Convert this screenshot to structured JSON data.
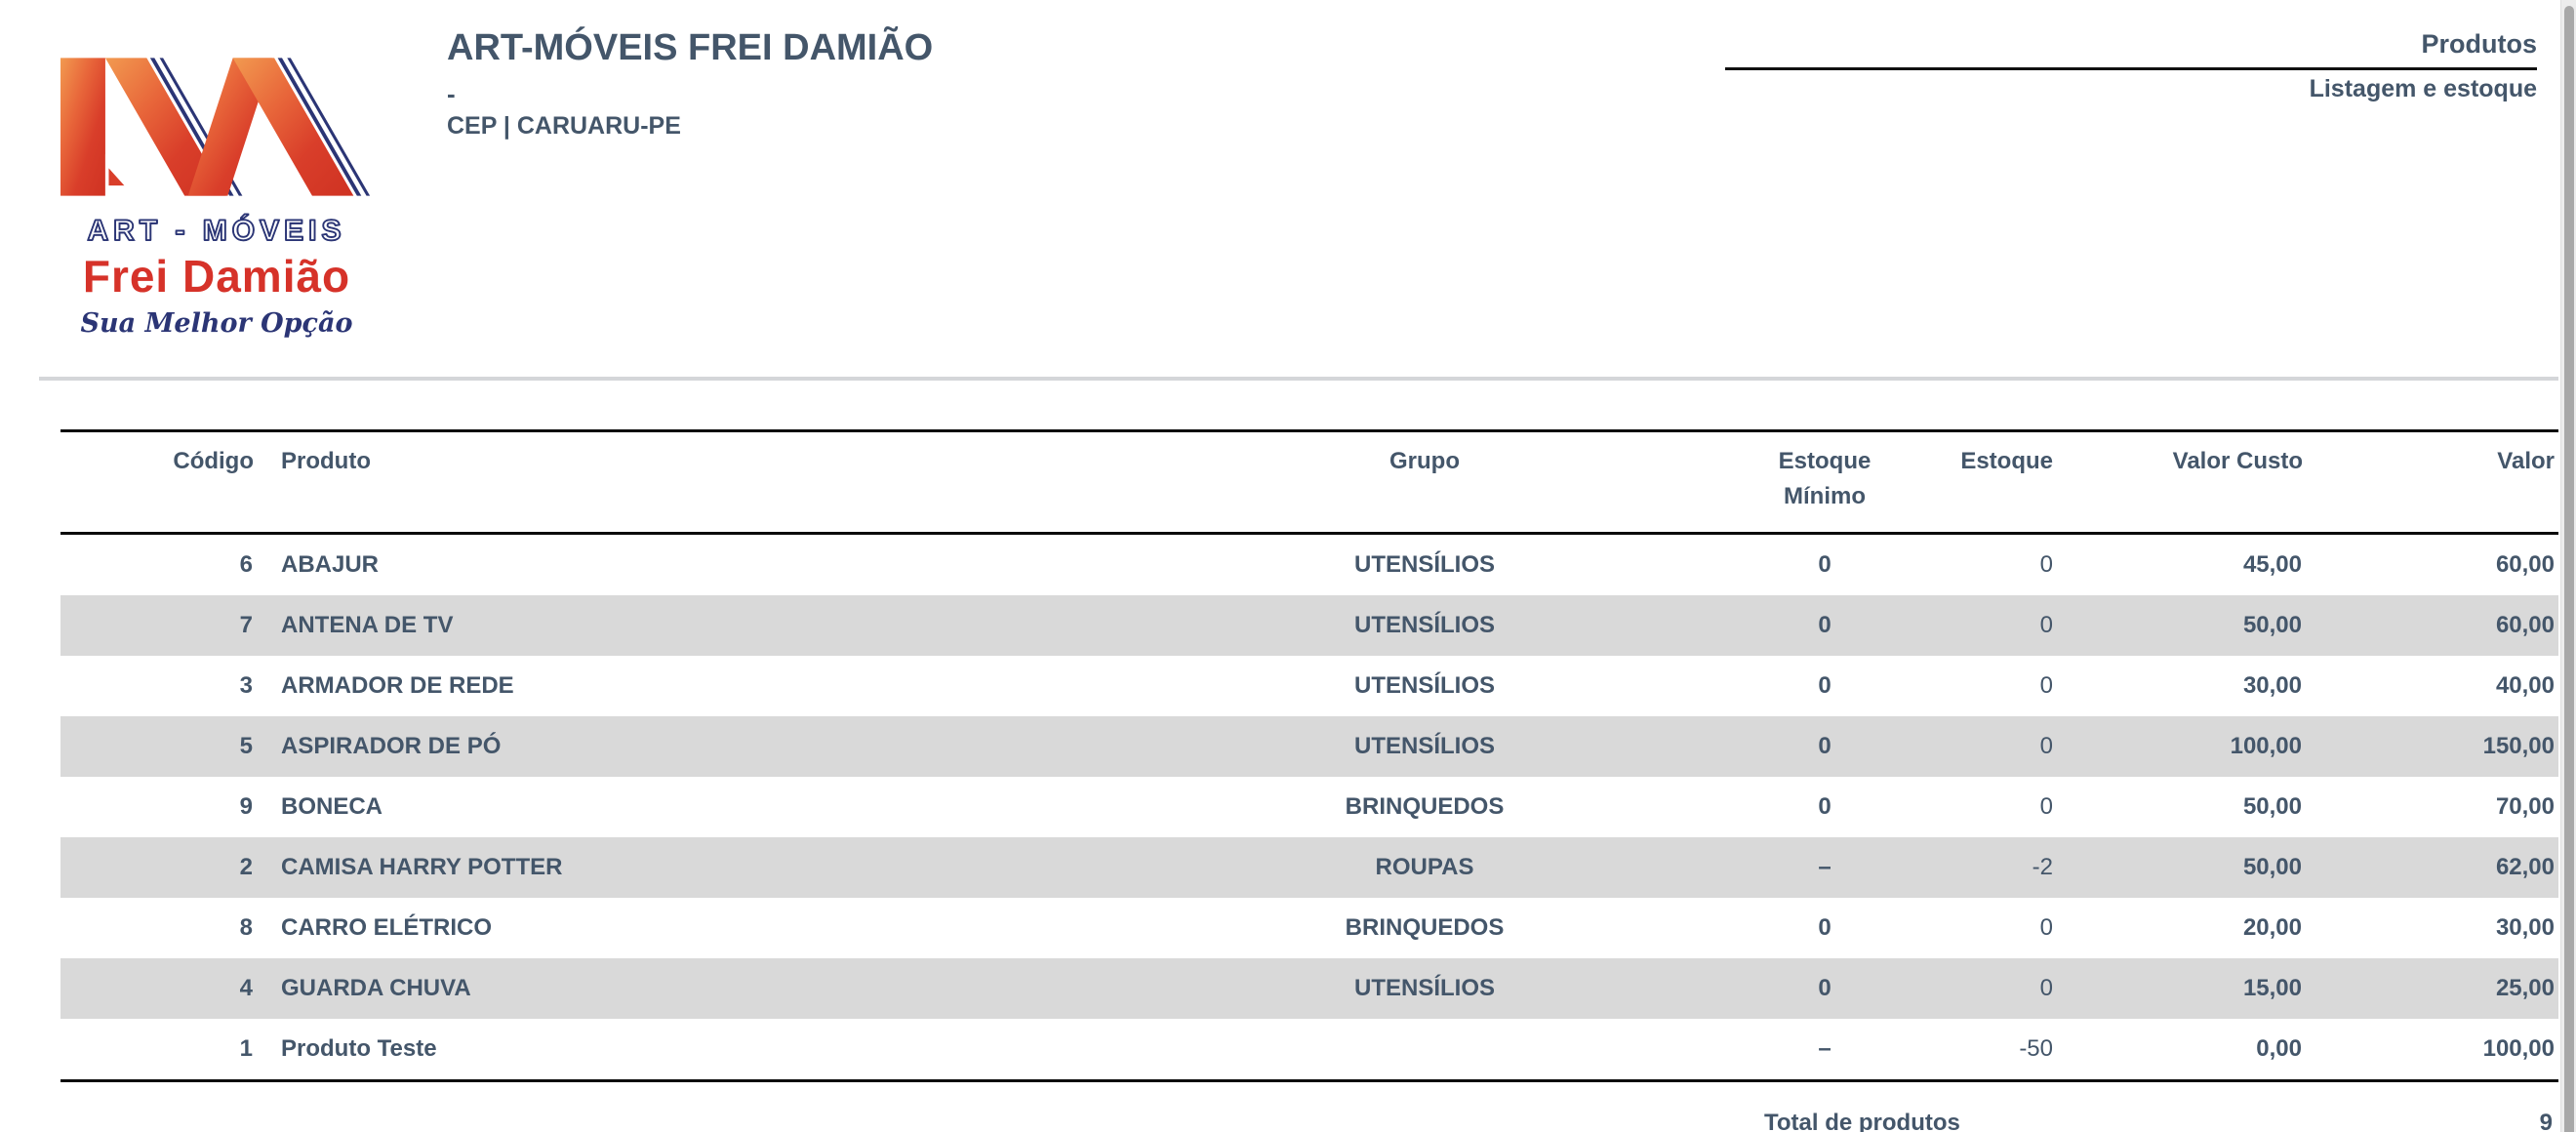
{
  "logo": {
    "monogram": "AM",
    "line1": "ART - MÓVEIS",
    "line2": "Frei Damião",
    "tagline": "Sua Melhor Opção"
  },
  "header": {
    "company_name": "ART-MÓVEIS FREI DAMIÃO",
    "dash": "-",
    "address": "CEP | CARUARU-PE",
    "report_title": "Produtos",
    "report_subtitle": "Listagem e estoque"
  },
  "table": {
    "headers": [
      "Código",
      "Produto",
      "Grupo",
      "Estoque\nMínimo",
      "Estoque",
      "Valor Custo",
      "Valor"
    ],
    "col_keys": [
      "codigo",
      "produto",
      "grupo",
      "estoque-minimo",
      "estoque",
      "valor-custo",
      "valor"
    ],
    "rows": [
      [
        "6",
        "ABAJUR",
        "UTENSÍLIOS",
        "0",
        "0",
        "45,00",
        "60,00"
      ],
      [
        "7",
        "ANTENA DE TV",
        "UTENSÍLIOS",
        "0",
        "0",
        "50,00",
        "60,00"
      ],
      [
        "3",
        "ARMADOR DE REDE",
        "UTENSÍLIOS",
        "0",
        "0",
        "30,00",
        "40,00"
      ],
      [
        "5",
        "ASPIRADOR DE PÓ",
        "UTENSÍLIOS",
        "0",
        "0",
        "100,00",
        "150,00"
      ],
      [
        "9",
        "BONECA",
        "BRINQUEDOS",
        "0",
        "0",
        "50,00",
        "70,00"
      ],
      [
        "2",
        "CAMISA HARRY POTTER",
        "ROUPAS",
        "–",
        "-2",
        "50,00",
        "62,00"
      ],
      [
        "8",
        "CARRO ELÉTRICO",
        "BRINQUEDOS",
        "0",
        "0",
        "20,00",
        "30,00"
      ],
      [
        "4",
        "GUARDA CHUVA",
        "UTENSÍLIOS",
        "0",
        "0",
        "15,00",
        "25,00"
      ],
      [
        "1",
        "Produto Teste",
        "",
        "–",
        "-50",
        "0,00",
        "100,00"
      ]
    ]
  },
  "footer": {
    "total_label": "Total de produtos",
    "total_value": "9"
  },
  "colors": {
    "text_slate": "#44566a",
    "brand_red": "#d63229",
    "brand_navy": "#2b3575",
    "logo_gradient_start": "#f29a50",
    "logo_gradient_end": "#cf3222",
    "row_stripe": "#d9d9d9",
    "table_border": "#0b0b0b",
    "divider": "#d4d6d9",
    "scrollbar_track": "#ececec",
    "scrollbar_thumb": "#a8a8a8"
  }
}
